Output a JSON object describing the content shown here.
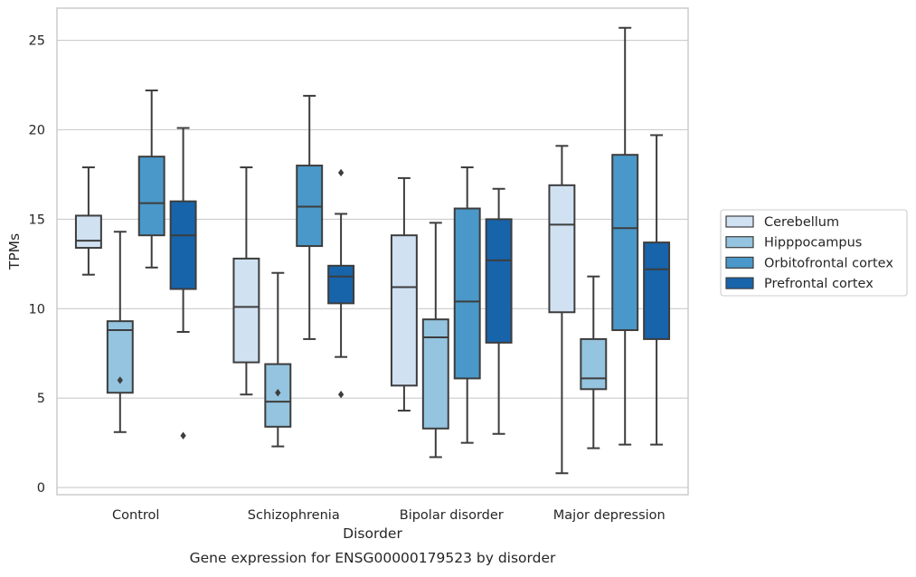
{
  "chart_data": {
    "type": "box",
    "caption": "Gene expression for ENSG00000179523 by disorder",
    "xlabel": "Disorder",
    "ylabel": "TPMs",
    "ylim": [
      -0.4,
      26.8
    ],
    "yticks": [
      0,
      5,
      10,
      15,
      20,
      25
    ],
    "grid": "horizontal",
    "legend_position": "right",
    "categories": [
      "Control",
      "Schizophrenia",
      "Bipolar disorder",
      "Major depression"
    ],
    "series": [
      {
        "name": "Cerebellum",
        "color": "#d0e1f2",
        "boxes": [
          {
            "whislo": 11.9,
            "q1": 13.4,
            "med": 13.8,
            "q3": 15.2,
            "whishi": 17.9,
            "fliers": []
          },
          {
            "whislo": 5.2,
            "q1": 7.0,
            "med": 10.1,
            "q3": 12.8,
            "whishi": 17.9,
            "fliers": []
          },
          {
            "whislo": 4.3,
            "q1": 5.7,
            "med": 11.2,
            "q3": 14.1,
            "whishi": 17.3,
            "fliers": []
          },
          {
            "whislo": 0.8,
            "q1": 9.8,
            "med": 14.7,
            "q3": 16.9,
            "whishi": 19.1,
            "fliers": []
          }
        ]
      },
      {
        "name": "Hipppocampus",
        "color": "#94c4df",
        "boxes": [
          {
            "whislo": 3.1,
            "q1": 5.3,
            "med": 8.8,
            "q3": 9.3,
            "whishi": 14.3,
            "fliers": [
              6.0
            ]
          },
          {
            "whislo": 2.3,
            "q1": 3.4,
            "med": 4.8,
            "q3": 6.9,
            "whishi": 12.0,
            "fliers": [
              5.3
            ]
          },
          {
            "whislo": 1.7,
            "q1": 3.3,
            "med": 8.4,
            "q3": 9.4,
            "whishi": 14.8,
            "fliers": []
          },
          {
            "whislo": 2.2,
            "q1": 5.5,
            "med": 6.1,
            "q3": 8.3,
            "whishi": 11.8,
            "fliers": []
          }
        ]
      },
      {
        "name": "Orbitofrontal cortex",
        "color": "#4a98c9",
        "boxes": [
          {
            "whislo": 12.3,
            "q1": 14.1,
            "med": 15.9,
            "q3": 18.5,
            "whishi": 22.2,
            "fliers": []
          },
          {
            "whislo": 8.3,
            "q1": 13.5,
            "med": 15.7,
            "q3": 18.0,
            "whishi": 21.9,
            "fliers": []
          },
          {
            "whislo": 2.5,
            "q1": 6.1,
            "med": 10.4,
            "q3": 15.6,
            "whishi": 17.9,
            "fliers": []
          },
          {
            "whislo": 2.4,
            "q1": 8.8,
            "med": 14.5,
            "q3": 18.6,
            "whishi": 25.7,
            "fliers": []
          }
        ]
      },
      {
        "name": "Prefrontal cortex",
        "color": "#1764ab",
        "boxes": [
          {
            "whislo": 8.7,
            "q1": 11.1,
            "med": 14.1,
            "q3": 16.0,
            "whishi": 20.1,
            "fliers": [
              2.9
            ]
          },
          {
            "whislo": 7.3,
            "q1": 10.3,
            "med": 11.8,
            "q3": 12.4,
            "whishi": 15.3,
            "fliers": [
              17.6,
              5.2
            ]
          },
          {
            "whislo": 3.0,
            "q1": 8.1,
            "med": 12.7,
            "q3": 15.0,
            "whishi": 16.7,
            "fliers": []
          },
          {
            "whislo": 2.4,
            "q1": 8.3,
            "med": 12.2,
            "q3": 13.7,
            "whishi": 19.7,
            "fliers": []
          }
        ]
      }
    ]
  }
}
